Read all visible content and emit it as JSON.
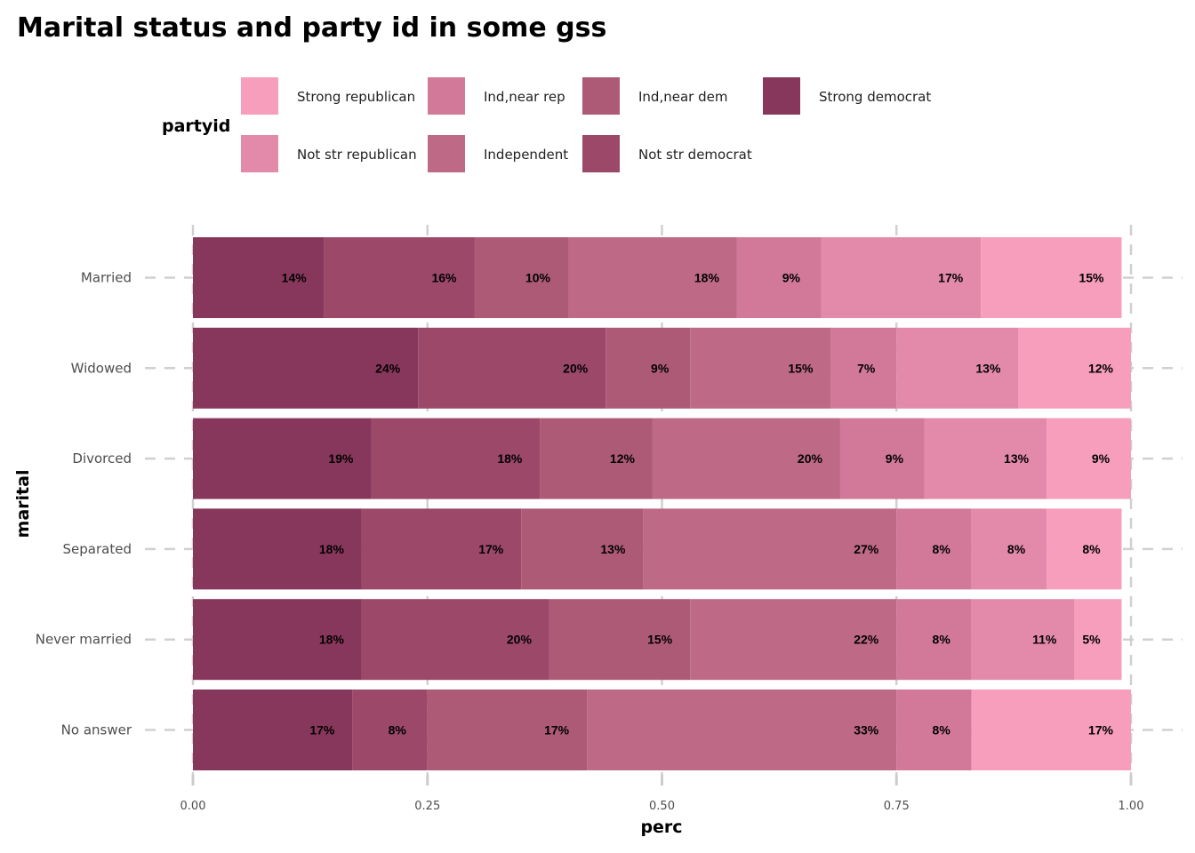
{
  "chart_data": {
    "type": "bar",
    "orientation": "horizontal",
    "stacked": "fill",
    "title": "Marital status and party id in some gss",
    "xlabel": "perc",
    "ylabel": "marital",
    "xlim": [
      0,
      1
    ],
    "x_ticks": [
      "0.00",
      "0.25",
      "0.50",
      "0.75",
      "1.00"
    ],
    "x_tick_values": [
      0,
      0.25,
      0.5,
      0.75,
      1.0
    ],
    "legend": {
      "title": "partyid",
      "placement": "top",
      "entries": [
        "Strong republican",
        "Not str republican",
        "Ind,near rep",
        "Independent",
        "Ind,near dem",
        "Not str democrat",
        "Strong democrat"
      ]
    },
    "categories": [
      "Married",
      "Widowed",
      "Divorced",
      "Separated",
      "Never married",
      "No answer"
    ],
    "series": [
      {
        "name": "Strong democrat",
        "color": "#88375c",
        "values": [
          0.14,
          0.24,
          0.19,
          0.18,
          0.18,
          0.17
        ],
        "labels": [
          "14%",
          "24%",
          "19%",
          "18%",
          "18%",
          "17%"
        ]
      },
      {
        "name": "Not str democrat",
        "color": "#9b4869",
        "values": [
          0.16,
          0.2,
          0.18,
          0.17,
          0.2,
          0.08
        ],
        "labels": [
          "16%",
          "20%",
          "18%",
          "17%",
          "20%",
          "8%"
        ]
      },
      {
        "name": "Ind,near dem",
        "color": "#ad5a77",
        "values": [
          0.1,
          0.09,
          0.12,
          0.13,
          0.15,
          0.17
        ],
        "labels": [
          "10%",
          "9%",
          "12%",
          "13%",
          "15%",
          "17%"
        ]
      },
      {
        "name": "Independent",
        "color": "#be6986",
        "values": [
          0.18,
          0.15,
          0.2,
          0.27,
          0.22,
          0.33
        ],
        "labels": [
          "18%",
          "15%",
          "20%",
          "27%",
          "22%",
          "33%"
        ]
      },
      {
        "name": "Ind,near rep",
        "color": "#d27999",
        "values": [
          0.09,
          0.07,
          0.09,
          0.08,
          0.08,
          0.08
        ],
        "labels": [
          "9%",
          "7%",
          "9%",
          "8%",
          "8%",
          "8%"
        ]
      },
      {
        "name": "Not str republican",
        "color": "#e38aab",
        "values": [
          0.17,
          0.13,
          0.13,
          0.08,
          0.11,
          0.0
        ],
        "labels": [
          "17%",
          "13%",
          "13%",
          "8%",
          "11%",
          ""
        ]
      },
      {
        "name": "Strong republican",
        "color": "#f69ebc",
        "values": [
          0.15,
          0.12,
          0.09,
          0.08,
          0.05,
          0.17
        ],
        "labels": [
          "15%",
          "12%",
          "9%",
          "8%",
          "5%",
          "17%"
        ]
      }
    ]
  }
}
